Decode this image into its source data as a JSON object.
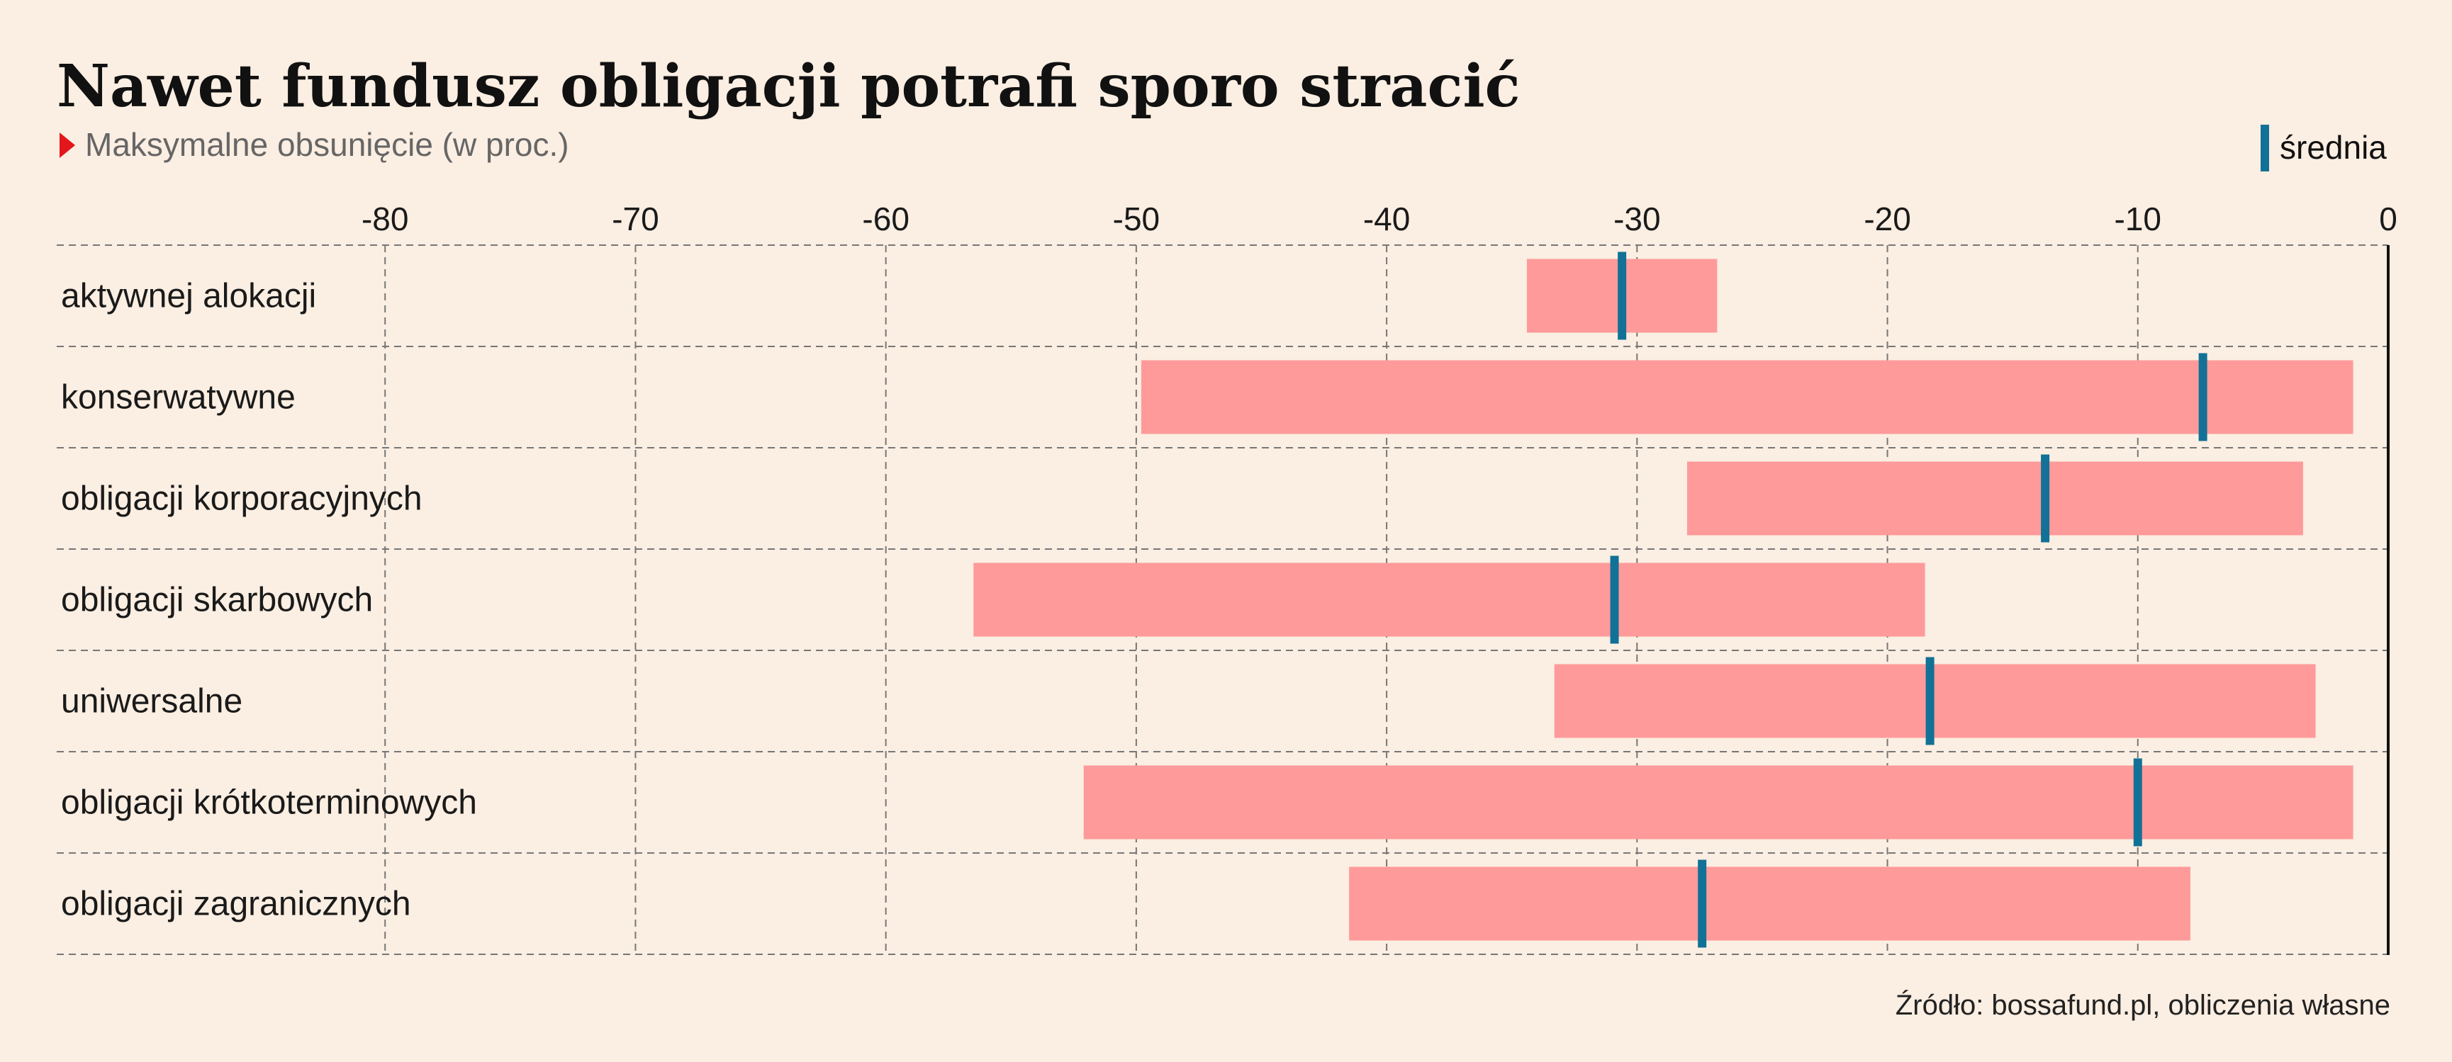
{
  "title": "Nawet fundusz obligacji potrafi sporo stracić",
  "subtitle": "Maksymalne obsunięcie (w proc.)",
  "source": "Źródło: bossafund.pl, obliczenia własne",
  "colors": {
    "background": "#fbeee2",
    "range": "#ff9a9a",
    "mean": "#127196",
    "marker": "#e3161b",
    "text": "#1a1a1a",
    "subtext": "#666666",
    "grid": "#777777"
  },
  "chart_data": {
    "type": "bar",
    "orientation": "horizontal",
    "subtype": "floating-range-with-mean",
    "xlim": [
      -90,
      0
    ],
    "xticks": [
      -80,
      -70,
      -60,
      -50,
      -40,
      -30,
      -20,
      -10,
      0
    ],
    "grid": true,
    "legend": {
      "placement": "top-right",
      "mean_label": "średnia"
    },
    "categories": [
      "aktywnej alokacji",
      "konserwatywne",
      "obligacji korporacyjnych",
      "obligacji skarbowych",
      "uniwersalne",
      "obligacji krótkoterminowych",
      "obligacji zagranicznych"
    ],
    "min": [
      -34.4,
      -49.8,
      -28.0,
      -56.5,
      -33.3,
      -52.1,
      -41.5
    ],
    "max": [
      -26.8,
      -1.4,
      -3.4,
      -18.5,
      -2.9,
      -1.4,
      -7.9
    ],
    "mean": [
      -30.6,
      -7.4,
      -13.7,
      -30.9,
      -18.3,
      -10.0,
      -27.4
    ]
  }
}
